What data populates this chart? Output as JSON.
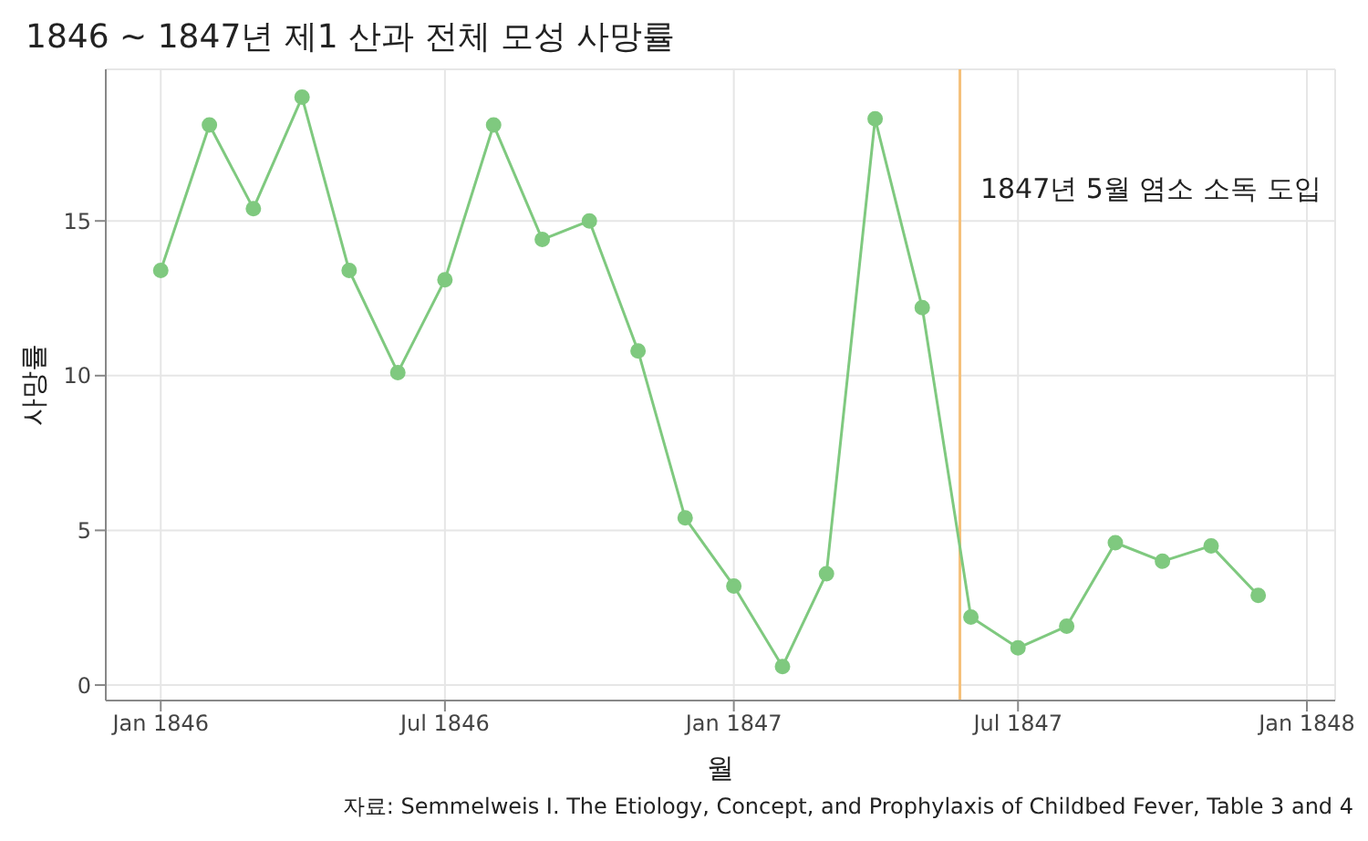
{
  "chart_data": {
    "type": "line",
    "title": "1846 ~ 1847년 제1 산과 전체 모성 사망률",
    "xlabel": "월",
    "ylabel": "사망률",
    "annotations": [
      "자료: Semmelweis I. The Etiology, Concept, and Prophylaxis of Childbed Fever, Table 3 and 4"
    ],
    "x": [
      "1846-01",
      "1846-02",
      "1846-03",
      "1846-04",
      "1846-05",
      "1846-06",
      "1846-07",
      "1846-08",
      "1846-09",
      "1846-10",
      "1846-11",
      "1846-12",
      "1847-01",
      "1847-02",
      "1847-03",
      "1847-04",
      "1847-05",
      "1847-06",
      "1847-07",
      "1847-08",
      "1847-09",
      "1847-10",
      "1847-11",
      "1847-12"
    ],
    "series": [
      {
        "color": "#7fc97f",
        "values": [
          13.4,
          18.1,
          15.4,
          19.0,
          13.4,
          10.1,
          13.1,
          18.1,
          14.4,
          15.0,
          10.8,
          5.4,
          3.2,
          0.6,
          3.6,
          18.3,
          12.2,
          2.2,
          1.2,
          1.9,
          4.6,
          4.0,
          4.5,
          2.9
        ]
      }
    ],
    "xlim": [
      "1845-11-27",
      "1848-01-19"
    ],
    "xticks": [
      {
        "value": "1846-01",
        "label": "Jan 1846"
      },
      {
        "value": "1846-07",
        "label": "Jul 1846"
      },
      {
        "value": "1847-01",
        "label": "Jan 1847"
      },
      {
        "value": "1847-07",
        "label": "Jul 1847"
      },
      {
        "value": "1848-01",
        "label": "Jan 1848"
      }
    ],
    "ylim": [
      -0.5,
      19.9
    ],
    "yticks": [
      0,
      5,
      10,
      15
    ],
    "ref_lines": [
      {
        "axis": "x",
        "value": "1847-05-25",
        "label": "1847년 5월 염소 소독 도입",
        "color": "#f5c07a"
      }
    ],
    "grid": true,
    "marker": "circle",
    "line_style": "solid",
    "legend": false
  }
}
